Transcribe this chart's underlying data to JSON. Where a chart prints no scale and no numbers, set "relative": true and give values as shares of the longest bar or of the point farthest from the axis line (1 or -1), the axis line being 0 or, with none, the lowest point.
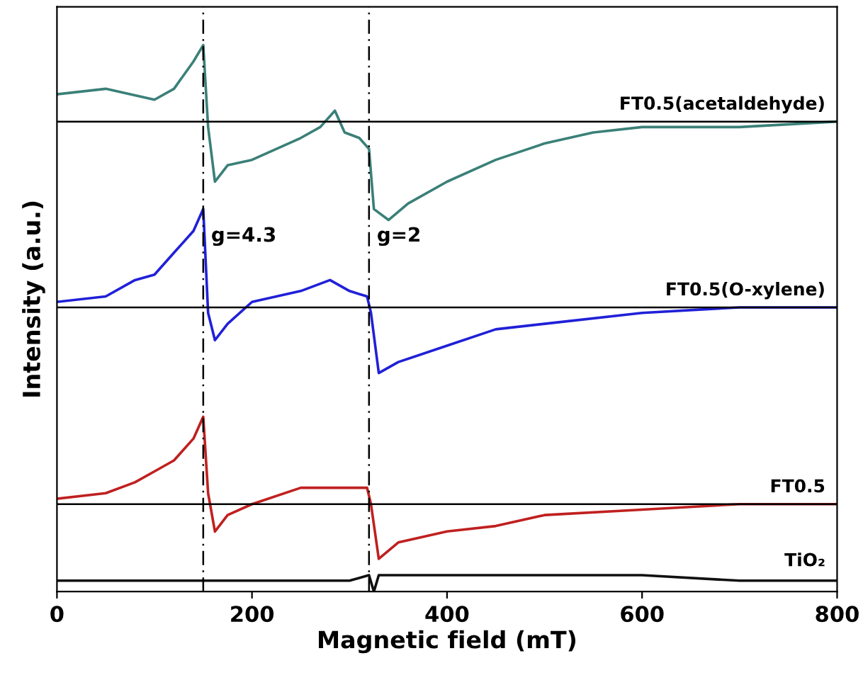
{
  "chart_data": {
    "type": "line",
    "relative": true,
    "xlabel": "Magnetic field (mT)",
    "ylabel": "Intensity (a.u.)",
    "xlim": [
      0,
      800
    ],
    "xticks": [
      0,
      200,
      400,
      600,
      800
    ],
    "tick_labels": "x",
    "grid": false,
    "legend": false,
    "line_style": "solid",
    "series": [
      {
        "name": "FT0.5(acetaldehyde)",
        "color": "#3a8078",
        "x": [
          0,
          50,
          100,
          120,
          140,
          150,
          155,
          162,
          175,
          200,
          250,
          270,
          285,
          295,
          310,
          320,
          325,
          340,
          360,
          400,
          450,
          500,
          550,
          600,
          700,
          800
        ],
        "values": [
          0.91,
          0.92,
          0.9,
          0.92,
          0.97,
          1.0,
          0.85,
          0.75,
          0.78,
          0.79,
          0.83,
          0.85,
          0.88,
          0.84,
          0.83,
          0.81,
          0.7,
          0.68,
          0.71,
          0.75,
          0.79,
          0.82,
          0.84,
          0.85,
          0.85,
          0.86
        ]
      },
      {
        "name": "FT0.5(O-xylene)",
        "color": "#2020d8",
        "x": [
          0,
          50,
          80,
          100,
          120,
          140,
          150,
          155,
          162,
          175,
          200,
          250,
          280,
          300,
          318,
          322,
          330,
          350,
          400,
          450,
          500,
          600,
          700,
          800
        ],
        "values": [
          0.53,
          0.54,
          0.57,
          0.58,
          0.62,
          0.66,
          0.7,
          0.51,
          0.46,
          0.49,
          0.53,
          0.55,
          0.57,
          0.55,
          0.54,
          0.51,
          0.4,
          0.42,
          0.45,
          0.48,
          0.49,
          0.51,
          0.52,
          0.52
        ]
      },
      {
        "name": "FT0.5",
        "color": "#c02020",
        "x": [
          0,
          50,
          80,
          100,
          120,
          140,
          150,
          155,
          162,
          175,
          200,
          250,
          300,
          318,
          322,
          330,
          350,
          400,
          450,
          500,
          600,
          700,
          800
        ],
        "values": [
          0.17,
          0.18,
          0.2,
          0.22,
          0.24,
          0.28,
          0.32,
          0.18,
          0.11,
          0.14,
          0.16,
          0.19,
          0.19,
          0.19,
          0.16,
          0.06,
          0.09,
          0.11,
          0.12,
          0.14,
          0.15,
          0.16,
          0.16
        ]
      },
      {
        "name": "TiO₂",
        "color": "#101010",
        "x": [
          0,
          100,
          200,
          300,
          320,
          325,
          330,
          400,
          500,
          600,
          700,
          800
        ],
        "values": [
          0.02,
          0.02,
          0.02,
          0.02,
          0.03,
          0.0,
          0.03,
          0.03,
          0.03,
          0.03,
          0.02,
          0.02
        ]
      }
    ],
    "ref_lines": [
      {
        "axis": "y",
        "value": 0.86,
        "color": "#000000",
        "line_style": "solid"
      },
      {
        "axis": "y",
        "value": 0.52,
        "color": "#000000",
        "line_style": "solid"
      },
      {
        "axis": "y",
        "value": 0.16,
        "color": "#000000",
        "line_style": "solid"
      },
      {
        "axis": "x",
        "value": 150,
        "color": "#000000",
        "line_style": "dashed"
      },
      {
        "axis": "x",
        "value": 320,
        "color": "#000000",
        "line_style": "dashed"
      }
    ],
    "annotations": [
      {
        "text": "g=4.3",
        "x": 150,
        "y": 0.65
      },
      {
        "text": "g=2",
        "x": 320,
        "y": 0.65
      }
    ]
  }
}
